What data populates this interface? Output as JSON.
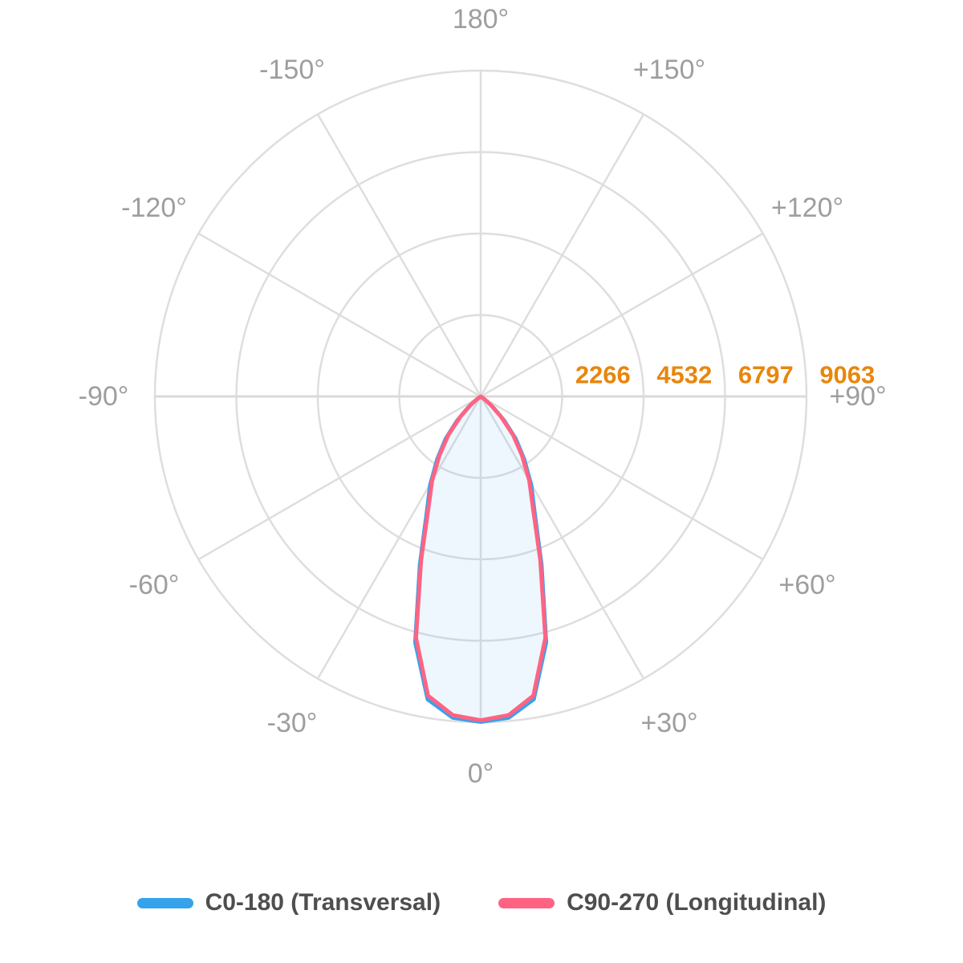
{
  "chart_data": {
    "type": "line",
    "subtype": "polar-photometric",
    "title": "",
    "orientation": "0-degrees-at-bottom, positive angles to the right",
    "grid": true,
    "r_min": 0,
    "r_max": 9063,
    "radial_ticks": [
      "2266",
      "4532",
      "6797",
      "9063"
    ],
    "angle_ticks": [
      {
        "deg": 0,
        "label": "0°"
      },
      {
        "deg": 30,
        "label": "+30°"
      },
      {
        "deg": 60,
        "label": "+60°"
      },
      {
        "deg": 90,
        "label": "+90°"
      },
      {
        "deg": 120,
        "label": "+120°"
      },
      {
        "deg": 150,
        "label": "+150°"
      },
      {
        "deg": 180,
        "label": "180°"
      },
      {
        "deg": -150,
        "label": "-150°"
      },
      {
        "deg": -120,
        "label": "-120°"
      },
      {
        "deg": -90,
        "label": "-90°"
      },
      {
        "deg": -60,
        "label": "-60°"
      },
      {
        "deg": -30,
        "label": "-30°"
      }
    ],
    "angles_deg": [
      -90,
      -85,
      -80,
      -75,
      -70,
      -65,
      -60,
      -55,
      -50,
      -45,
      -40,
      -35,
      -30,
      -25,
      -20,
      -15,
      -10,
      -5,
      0,
      5,
      10,
      15,
      20,
      25,
      30,
      35,
      40,
      45,
      50,
      55,
      60,
      65,
      70,
      75,
      80,
      85,
      90
    ],
    "series": [
      {
        "name": "C0-180 (Transversal)",
        "color": "#36A2EB",
        "fill": "rgba(54,162,235,0.09)",
        "stroke_width": 4,
        "values": [
          0,
          0,
          0,
          0,
          0,
          0,
          0,
          160,
          470,
          930,
          1530,
          2130,
          2830,
          3580,
          4980,
          7080,
          8560,
          8980,
          9063,
          8980,
          8560,
          7080,
          4980,
          3580,
          2830,
          2130,
          1530,
          930,
          470,
          160,
          0,
          0,
          0,
          0,
          0,
          0,
          0
        ]
      },
      {
        "name": "C90-270 (Longitudinal)",
        "color": "#FF6384",
        "fill": "none",
        "stroke_width": 5,
        "values": [
          0,
          0,
          0,
          0,
          0,
          0,
          0,
          100,
          360,
          800,
          1400,
          2000,
          2700,
          3450,
          4850,
          6950,
          8450,
          8900,
          9010,
          8900,
          8450,
          6950,
          4850,
          3450,
          2700,
          2000,
          1400,
          800,
          360,
          100,
          0,
          0,
          0,
          0,
          0,
          0,
          0
        ]
      }
    ],
    "legend_position": "bottom"
  },
  "legend": {
    "items": [
      {
        "label": "C0-180 (Transversal)",
        "color": "#36A2EB"
      },
      {
        "label": "C90-270 (Longitudinal)",
        "color": "#FF6384"
      }
    ]
  },
  "colors": {
    "grid": "#DEDEDE",
    "axis_line": "#DADADA",
    "angle_label": "#9E9E9E",
    "radial_tick_label": "#E8860D",
    "legend_text": "#4E4E4E",
    "background": "#FFFFFF"
  }
}
